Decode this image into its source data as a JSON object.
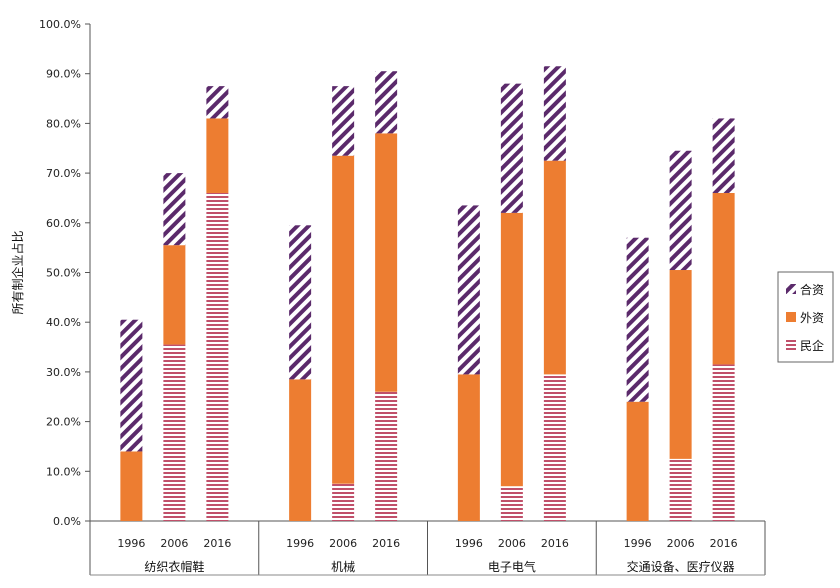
{
  "chart_data": {
    "type": "bar",
    "stacked": true,
    "title": "",
    "ylabel": "所有制企业占比",
    "xlabel": "",
    "ylim": [
      0,
      100
    ],
    "yticks": [
      "0.0%",
      "10.0%",
      "20.0%",
      "30.0%",
      "40.0%",
      "50.0%",
      "60.0%",
      "70.0%",
      "80.0%",
      "90.0%",
      "100.0%"
    ],
    "groups": [
      "纺织衣帽鞋",
      "机械",
      "电子电气",
      "交通设备、医疗仪器"
    ],
    "years": [
      "1996",
      "2006",
      "2016"
    ],
    "series": [
      {
        "name": "民企",
        "color": "#c0506a",
        "pattern": "horizontal-stripes",
        "values": [
          [
            0,
            35.5,
            66
          ],
          [
            0,
            7.5,
            26
          ],
          [
            0,
            7,
            29.5
          ],
          [
            0,
            12.5,
            31.5
          ]
        ]
      },
      {
        "name": "外资",
        "color": "#ed7d31",
        "pattern": "solid",
        "values": [
          [
            14,
            20,
            15
          ],
          [
            28.5,
            66,
            52
          ],
          [
            29.5,
            55,
            43
          ],
          [
            24,
            38,
            34.5
          ]
        ]
      },
      {
        "name": "合资",
        "color": "#5b2a6b",
        "pattern": "diagonal-stripes",
        "values": [
          [
            26.5,
            14.5,
            6.5
          ],
          [
            31,
            14,
            12.5
          ],
          [
            34,
            26,
            19
          ],
          [
            33,
            24,
            15
          ]
        ]
      }
    ],
    "legend": [
      "合资",
      "外资",
      "民企"
    ],
    "legend_position": "right"
  }
}
